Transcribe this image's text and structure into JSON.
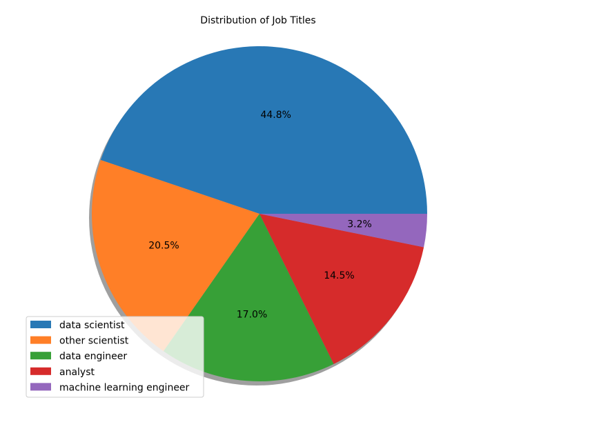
{
  "chart_data": {
    "type": "pie",
    "title": "Distribution of Job Titles",
    "categories": [
      "data scientist",
      "other scientist",
      "data engineer",
      "analyst",
      "machine learning engineer"
    ],
    "values": [
      44.8,
      20.5,
      17.0,
      14.5,
      3.2
    ],
    "labels": [
      "44.8%",
      "20.5%",
      "17.0%",
      "14.5%",
      "3.2%"
    ],
    "colors": [
      "#2878b5",
      "#ff7f27",
      "#37a037",
      "#d62b2b",
      "#9467bd"
    ],
    "start_angle_deg": 0,
    "direction": "counterclockwise",
    "shadow": true,
    "legend": {
      "position": "lower-left",
      "entries": [
        "data scientist",
        "other scientist",
        "data engineer",
        "analyst",
        "machine learning engineer"
      ]
    }
  }
}
